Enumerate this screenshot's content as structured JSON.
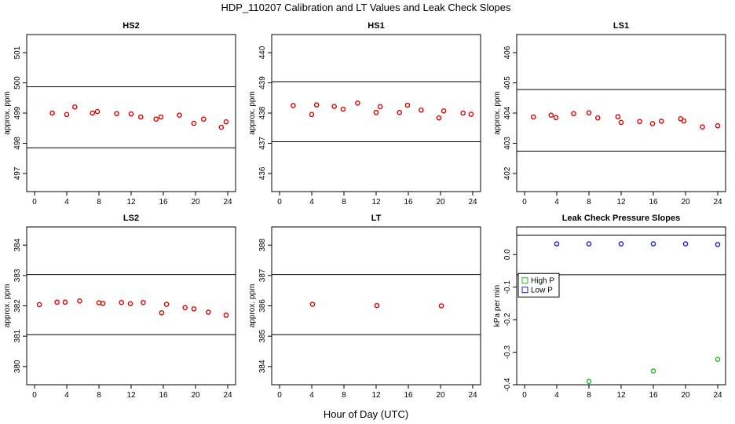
{
  "main_title": "HDP_110207  Calibration and LT Values and Leak Check Slopes",
  "xlabel": "Hour of Day (UTC)",
  "colors": {
    "cal_points": "#dd0000",
    "high_p": "#22bb22",
    "low_p": "#1f1fcc",
    "axis": "#000000"
  },
  "chart_data": [
    {
      "type": "scatter",
      "title": "HS2",
      "ylabel": "approx. ppm",
      "xlim": [
        0,
        24
      ],
      "ylim": [
        496.4,
        501.6
      ],
      "xticks": [
        0,
        4,
        8,
        12,
        16,
        20,
        24
      ],
      "yticks": [
        497,
        498,
        499,
        500,
        501
      ],
      "hlines": [
        499.87,
        497.85
      ],
      "series": [
        {
          "color": "#dd0000",
          "x": [
            2.2,
            4.0,
            5.0,
            7.2,
            7.8,
            10.2,
            12.0,
            13.2,
            15.1,
            15.7,
            18.0,
            19.8,
            21.0,
            23.2,
            23.8
          ],
          "y": [
            499.0,
            498.95,
            499.2,
            499.0,
            499.05,
            498.98,
            498.97,
            498.87,
            498.8,
            498.87,
            498.93,
            498.66,
            498.8,
            498.53,
            498.71
          ]
        }
      ]
    },
    {
      "type": "scatter",
      "title": "HS1",
      "ylabel": "approx. ppm",
      "xlim": [
        0,
        24
      ],
      "ylim": [
        435.4,
        440.6
      ],
      "xticks": [
        0,
        4,
        8,
        12,
        16,
        20,
        24
      ],
      "yticks": [
        436,
        437,
        438,
        439,
        440
      ],
      "hlines": [
        439.04,
        437.05
      ],
      "series": [
        {
          "color": "#dd0000",
          "x": [
            1.7,
            4.0,
            4.6,
            6.8,
            7.9,
            9.7,
            12.0,
            12.5,
            14.9,
            15.9,
            17.6,
            19.8,
            20.4,
            22.8,
            23.8
          ],
          "y": [
            438.25,
            437.95,
            438.27,
            438.22,
            438.13,
            438.33,
            438.02,
            438.21,
            438.02,
            438.26,
            438.1,
            437.84,
            438.07,
            438.0,
            437.96
          ]
        }
      ]
    },
    {
      "type": "scatter",
      "title": "LS1",
      "ylabel": "approx. ppm",
      "xlim": [
        0,
        24
      ],
      "ylim": [
        401.4,
        406.6
      ],
      "xticks": [
        0,
        4,
        8,
        12,
        16,
        20,
        24
      ],
      "yticks": [
        402,
        403,
        404,
        405,
        406
      ],
      "hlines": [
        404.78,
        402.74
      ],
      "series": [
        {
          "color": "#dd0000",
          "x": [
            1.1,
            3.3,
            3.9,
            6.1,
            8.0,
            9.1,
            11.6,
            12.0,
            14.3,
            15.9,
            17.0,
            19.4,
            19.8,
            22.1,
            24.0
          ],
          "y": [
            403.87,
            403.93,
            403.85,
            403.98,
            404.01,
            403.84,
            403.88,
            403.69,
            403.72,
            403.65,
            403.73,
            403.81,
            403.74,
            403.54,
            403.58
          ]
        }
      ]
    },
    {
      "type": "scatter",
      "title": "LS2",
      "ylabel": "approx. ppm",
      "xlim": [
        0,
        24
      ],
      "ylim": [
        379.4,
        384.6
      ],
      "xticks": [
        0,
        4,
        8,
        12,
        16,
        20,
        24
      ],
      "yticks": [
        380,
        381,
        382,
        383,
        384
      ],
      "hlines": [
        383.03,
        381.05
      ],
      "series": [
        {
          "color": "#dd0000",
          "x": [
            0.6,
            2.8,
            3.8,
            5.6,
            8.0,
            8.5,
            10.8,
            11.9,
            13.5,
            15.8,
            16.4,
            18.7,
            19.8,
            21.6,
            23.8
          ],
          "y": [
            382.04,
            382.12,
            382.12,
            382.16,
            382.1,
            382.08,
            382.11,
            382.07,
            382.11,
            381.77,
            382.05,
            381.94,
            381.9,
            381.79,
            381.69
          ]
        }
      ]
    },
    {
      "type": "scatter",
      "title": "LT",
      "ylabel": "approx. ppm",
      "xlim": [
        0,
        24
      ],
      "ylim": [
        383.4,
        388.6
      ],
      "xticks": [
        0,
        4,
        8,
        12,
        16,
        20,
        24
      ],
      "yticks": [
        384,
        385,
        386,
        387,
        388
      ],
      "hlines": [
        387.03,
        385.05
      ],
      "series": [
        {
          "color": "#dd0000",
          "x": [
            4.1,
            12.1,
            20.1
          ],
          "y": [
            386.05,
            386.01,
            386.0
          ]
        }
      ]
    },
    {
      "type": "scatter",
      "title": "Leak Check Pressure Slopes",
      "ylabel": "kPa per min",
      "xlim": [
        0,
        24
      ],
      "ylim": [
        -0.4,
        0.085
      ],
      "xticks": [
        0,
        4,
        8,
        12,
        16,
        20,
        24
      ],
      "yticks": [
        -0.4,
        -0.3,
        -0.2,
        -0.1,
        0.0
      ],
      "ytick_labels": [
        "-0.4",
        "-0.3",
        "-0.2",
        "-0.1",
        "0.0"
      ],
      "hlines": [
        0.06,
        -0.062
      ],
      "legend": {
        "placement": "middle-left",
        "entries": [
          {
            "label": "High P",
            "color": "#22bb22"
          },
          {
            "label": "Low P",
            "color": "#1f1fcc"
          }
        ]
      },
      "series": [
        {
          "name": "Low P",
          "color": "#1f1fcc",
          "x": [
            4,
            8,
            12,
            16,
            20,
            24
          ],
          "y": [
            0.033,
            0.033,
            0.033,
            0.033,
            0.033,
            0.031
          ]
        },
        {
          "name": "High P",
          "color": "#22bb22",
          "x": [
            8,
            16,
            24
          ],
          "y": [
            -0.39,
            -0.358,
            -0.322
          ]
        }
      ]
    }
  ]
}
